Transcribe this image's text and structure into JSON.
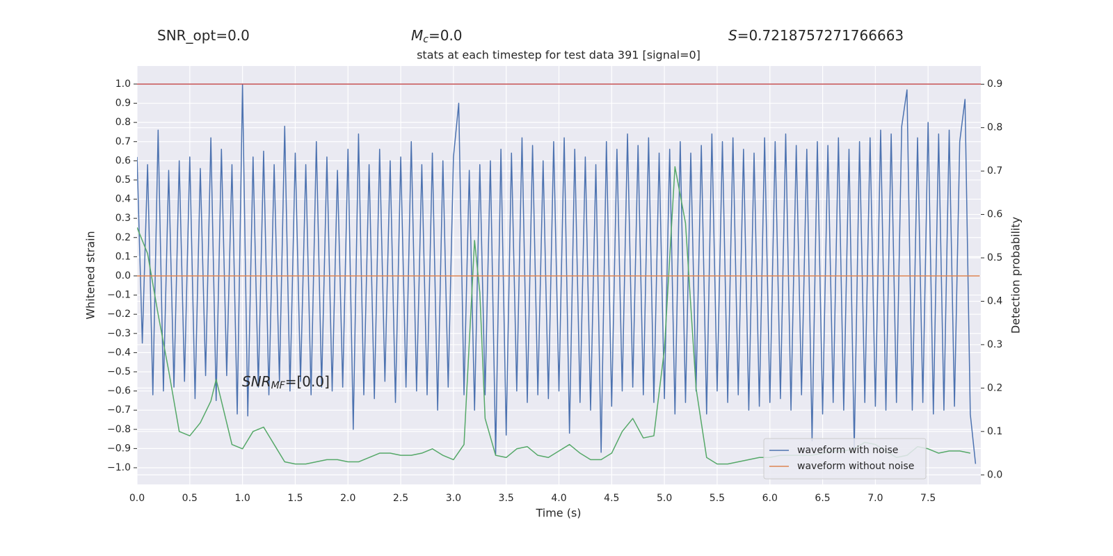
{
  "chart_data": {
    "type": "line",
    "header": [
      {
        "parts": [
          {
            "t": "SNR_opt=0.0"
          }
        ]
      },
      {
        "parts": [
          {
            "t": "M",
            "style": "italic"
          },
          {
            "t": "c",
            "style": "sub"
          },
          {
            "t": "=0.0"
          }
        ]
      },
      {
        "parts": [
          {
            "t": "S",
            "style": "italic"
          },
          {
            "t": "=0.7218757271766663"
          }
        ]
      }
    ],
    "title": "stats at each timestep for test data 391 [signal=0]",
    "annotation": {
      "parts": [
        {
          "t": "SNR",
          "style": "italic"
        },
        {
          "t": "MF",
          "style": "sub"
        },
        {
          "t": "=[0.0]"
        }
      ]
    },
    "xlabel": "Time (s)",
    "ylabel": "Whitened strain",
    "y2label": "Detection probability",
    "xlim": [
      0,
      8
    ],
    "ylim": [
      -1.087,
      1.094
    ],
    "y2lim": [
      -0.022,
      0.942
    ],
    "xticks": [
      {
        "value": 0,
        "label": "0.0"
      },
      {
        "value": 0.5,
        "label": "0.5"
      },
      {
        "value": 1,
        "label": "1.0"
      },
      {
        "value": 1.5,
        "label": "1.5"
      },
      {
        "value": 2,
        "label": "2.0"
      },
      {
        "value": 2.5,
        "label": "2.5"
      },
      {
        "value": 3,
        "label": "3.0"
      },
      {
        "value": 3.5,
        "label": "3.5"
      },
      {
        "value": 4,
        "label": "4.0"
      },
      {
        "value": 4.5,
        "label": "4.5"
      },
      {
        "value": 5,
        "label": "5.0"
      },
      {
        "value": 5.5,
        "label": "5.5"
      },
      {
        "value": 6,
        "label": "6.0"
      },
      {
        "value": 6.5,
        "label": "6.5"
      },
      {
        "value": 7,
        "label": "7.0"
      },
      {
        "value": 7.5,
        "label": "7.5"
      }
    ],
    "yticks": [
      {
        "value": -1,
        "label": "−1.0"
      },
      {
        "value": -0.9,
        "label": "−0.9"
      },
      {
        "value": -0.8,
        "label": "−0.8"
      },
      {
        "value": -0.7,
        "label": "−0.7"
      },
      {
        "value": -0.6,
        "label": "−0.6"
      },
      {
        "value": -0.5,
        "label": "−0.5"
      },
      {
        "value": -0.4,
        "label": "−0.4"
      },
      {
        "value": -0.3,
        "label": "−0.3"
      },
      {
        "value": -0.2,
        "label": "−0.2"
      },
      {
        "value": -0.1,
        "label": "−0.1"
      },
      {
        "value": 0,
        "label": "0.0"
      },
      {
        "value": 0.1,
        "label": "0.1"
      },
      {
        "value": 0.2,
        "label": "0.2"
      },
      {
        "value": 0.3,
        "label": "0.3"
      },
      {
        "value": 0.4,
        "label": "0.4"
      },
      {
        "value": 0.5,
        "label": "0.5"
      },
      {
        "value": 0.6,
        "label": "0.6"
      },
      {
        "value": 0.7,
        "label": "0.7"
      },
      {
        "value": 0.8,
        "label": "0.8"
      },
      {
        "value": 0.9,
        "label": "0.9"
      },
      {
        "value": 1,
        "label": "1.0"
      }
    ],
    "y2ticks": [
      {
        "value": 0,
        "label": "0.0"
      },
      {
        "value": 0.1,
        "label": "0.1"
      },
      {
        "value": 0.2,
        "label": "0.2"
      },
      {
        "value": 0.3,
        "label": "0.3"
      },
      {
        "value": 0.4,
        "label": "0.4"
      },
      {
        "value": 0.5,
        "label": "0.5"
      },
      {
        "value": 0.6,
        "label": "0.6"
      },
      {
        "value": 0.7,
        "label": "0.7"
      },
      {
        "value": 0.8,
        "label": "0.8"
      },
      {
        "value": 0.9,
        "label": "0.9"
      }
    ],
    "grid": true,
    "legend": "lower right",
    "reference_lines": [
      {
        "value": 1.0,
        "color": "#c44e52"
      }
    ],
    "series": [
      {
        "name": "waveform with noise",
        "color": "#4c72b0",
        "x": [
          0,
          0.05,
          0.1,
          0.15,
          0.2,
          0.25,
          0.3,
          0.35,
          0.4,
          0.45,
          0.5,
          0.55,
          0.6,
          0.65,
          0.7,
          0.75,
          0.8,
          0.85,
          0.9,
          0.95,
          1,
          1.05,
          1.1,
          1.15,
          1.2,
          1.25,
          1.3,
          1.35,
          1.4,
          1.45,
          1.5,
          1.55,
          1.6,
          1.65,
          1.7,
          1.75,
          1.8,
          1.85,
          1.9,
          1.95,
          2,
          2.05,
          2.1,
          2.15,
          2.2,
          2.25,
          2.3,
          2.35,
          2.4,
          2.45,
          2.5,
          2.55,
          2.6,
          2.65,
          2.7,
          2.75,
          2.8,
          2.85,
          2.9,
          2.95,
          3,
          3.05,
          3.1,
          3.15,
          3.2,
          3.25,
          3.3,
          3.35,
          3.4,
          3.45,
          3.5,
          3.55,
          3.6,
          3.65,
          3.7,
          3.75,
          3.8,
          3.85,
          3.9,
          3.95,
          4,
          4.05,
          4.1,
          4.15,
          4.2,
          4.25,
          4.3,
          4.35,
          4.4,
          4.45,
          4.5,
          4.55,
          4.6,
          4.65,
          4.7,
          4.75,
          4.8,
          4.85,
          4.9,
          4.95,
          5,
          5.05,
          5.1,
          5.15,
          5.2,
          5.25,
          5.3,
          5.35,
          5.4,
          5.45,
          5.5,
          5.55,
          5.6,
          5.65,
          5.7,
          5.75,
          5.8,
          5.85,
          5.9,
          5.95,
          6,
          6.05,
          6.1,
          6.15,
          6.2,
          6.25,
          6.3,
          6.35,
          6.4,
          6.45,
          6.5,
          6.55,
          6.6,
          6.65,
          6.7,
          6.75,
          6.8,
          6.85,
          6.9,
          6.95,
          7,
          7.05,
          7.1,
          7.15,
          7.2,
          7.25,
          7.3,
          7.35,
          7.4,
          7.45,
          7.5,
          7.55,
          7.6,
          7.65,
          7.7,
          7.75,
          7.8,
          7.85,
          7.9,
          7.95
        ],
        "values": [
          0.62,
          -0.35,
          0.58,
          -0.62,
          0.76,
          -0.6,
          0.55,
          -0.58,
          0.6,
          -0.55,
          0.62,
          -0.64,
          0.56,
          -0.52,
          0.72,
          -0.65,
          0.66,
          -0.52,
          0.58,
          -0.72,
          1.0,
          -0.73,
          0.62,
          -0.58,
          0.65,
          -0.62,
          0.58,
          -0.55,
          0.78,
          -0.6,
          0.64,
          -0.55,
          0.58,
          -0.62,
          0.7,
          -0.58,
          0.62,
          -0.6,
          0.55,
          -0.58,
          0.66,
          -0.8,
          0.74,
          -0.62,
          0.58,
          -0.64,
          0.66,
          -0.55,
          0.6,
          -0.66,
          0.62,
          -0.58,
          0.7,
          -0.6,
          0.58,
          -0.62,
          0.64,
          -0.7,
          0.6,
          -0.58,
          0.62,
          0.9,
          -0.62,
          0.55,
          -0.7,
          0.58,
          -0.62,
          0.6,
          -0.93,
          0.66,
          -0.83,
          0.64,
          -0.6,
          0.72,
          -0.66,
          0.68,
          -0.62,
          0.6,
          -0.64,
          0.7,
          -0.6,
          0.72,
          -0.82,
          0.66,
          -0.66,
          0.62,
          -0.7,
          0.58,
          -0.92,
          0.7,
          -0.68,
          0.66,
          -0.6,
          0.74,
          -0.58,
          0.68,
          -0.62,
          0.72,
          -0.66,
          0.64,
          -0.64,
          0.66,
          -0.72,
          0.7,
          -0.66,
          0.64,
          -0.6,
          0.68,
          -0.72,
          0.74,
          -0.6,
          0.7,
          -0.66,
          0.72,
          -0.62,
          0.66,
          -0.7,
          0.64,
          -0.68,
          0.72,
          -0.66,
          0.7,
          -0.64,
          0.74,
          -0.7,
          0.68,
          -0.62,
          0.66,
          -0.86,
          0.7,
          -0.72,
          0.68,
          -0.66,
          0.72,
          -0.7,
          0.66,
          -0.9,
          0.7,
          -0.66,
          0.72,
          -0.68,
          0.76,
          -0.7,
          0.74,
          -0.66,
          0.78,
          0.97,
          -0.7,
          0.72,
          -0.66,
          0.8,
          -0.72,
          0.74,
          -0.7,
          0.76,
          -0.68,
          0.7,
          0.92,
          -0.72,
          -0.98
        ]
      },
      {
        "name": "waveform without noise",
        "color": "#dd8452",
        "x": [
          0,
          7.99
        ],
        "values": [
          0,
          0
        ]
      },
      {
        "color": "#55a868",
        "axis": "y2",
        "x": [
          0,
          0.1,
          0.2,
          0.3,
          0.4,
          0.5,
          0.6,
          0.7,
          0.75,
          0.8,
          0.9,
          1,
          1.1,
          1.2,
          1.3,
          1.4,
          1.5,
          1.6,
          1.7,
          1.8,
          1.9,
          2,
          2.1,
          2.2,
          2.3,
          2.4,
          2.5,
          2.6,
          2.7,
          2.8,
          2.9,
          3,
          3.1,
          3.2,
          3.25,
          3.3,
          3.4,
          3.5,
          3.6,
          3.7,
          3.8,
          3.9,
          4,
          4.1,
          4.2,
          4.3,
          4.4,
          4.5,
          4.6,
          4.7,
          4.8,
          4.9,
          5,
          5.1,
          5.2,
          5.3,
          5.4,
          5.5,
          5.6,
          5.7,
          5.8,
          5.9,
          6,
          6.1,
          6.2,
          6.3,
          6.4,
          6.5,
          6.6,
          6.7,
          6.8,
          6.9,
          7,
          7.1,
          7.2,
          7.3,
          7.4,
          7.5,
          7.6,
          7.7,
          7.8,
          7.9
        ],
        "values": [
          0.57,
          0.51,
          0.37,
          0.24,
          0.1,
          0.09,
          0.12,
          0.17,
          0.22,
          0.17,
          0.07,
          0.06,
          0.1,
          0.11,
          0.07,
          0.03,
          0.025,
          0.025,
          0.03,
          0.035,
          0.035,
          0.03,
          0.03,
          0.04,
          0.05,
          0.05,
          0.045,
          0.045,
          0.05,
          0.06,
          0.045,
          0.035,
          0.07,
          0.54,
          0.42,
          0.13,
          0.045,
          0.04,
          0.06,
          0.065,
          0.045,
          0.04,
          0.055,
          0.07,
          0.05,
          0.035,
          0.035,
          0.05,
          0.1,
          0.13,
          0.085,
          0.09,
          0.29,
          0.71,
          0.58,
          0.2,
          0.04,
          0.025,
          0.025,
          0.03,
          0.035,
          0.04,
          0.04,
          0.045,
          0.045,
          0.045,
          0.045,
          0.05,
          0.055,
          0.055,
          0.06,
          0.075,
          0.07,
          0.055,
          0.04,
          0.045,
          0.065,
          0.06,
          0.05,
          0.055,
          0.055,
          0.05
        ]
      }
    ]
  }
}
